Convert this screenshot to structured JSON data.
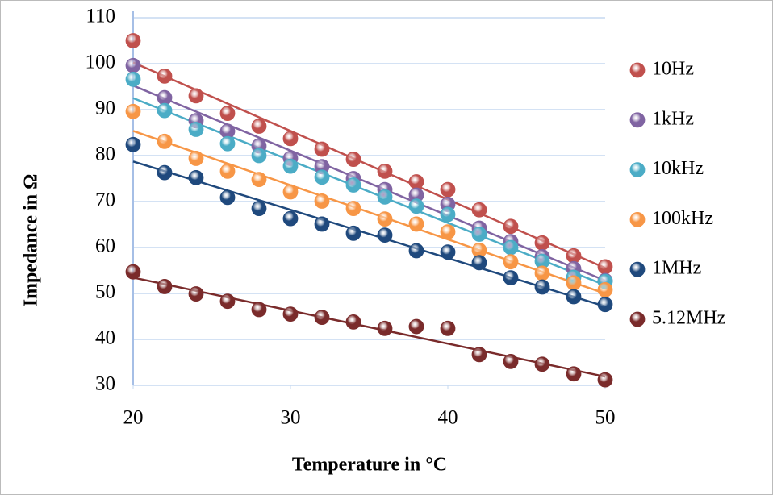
{
  "chart_data": {
    "type": "scatter",
    "x_label": "Temperature in °C",
    "y_label": "Impedance in Ω",
    "x": [
      20,
      22,
      24,
      26,
      28,
      30,
      32,
      34,
      36,
      38,
      40,
      42,
      44,
      46,
      48,
      50
    ],
    "series": [
      {
        "name": "10Hz",
        "color": "#c0504d",
        "values": [
          105,
          97.3,
          93,
          89.2,
          86.4,
          83.7,
          81.4,
          79.2,
          76.6,
          74.3,
          72.6,
          68.2,
          64.6,
          61,
          58.2,
          55.8
        ]
      },
      {
        "name": "1kHz",
        "color": "#8064a2",
        "values": [
          99.6,
          92.6,
          87.6,
          85.3,
          82.1,
          79.4,
          77.6,
          75,
          72.6,
          71.4,
          69.4,
          64.2,
          61.3,
          58,
          55.4,
          52.8
        ]
      },
      {
        "name": "10kHz",
        "color": "#4bacc6",
        "values": [
          96.6,
          89.8,
          85.7,
          82.6,
          80,
          77.7,
          75.3,
          73.6,
          71,
          69,
          67.2,
          62.9,
          60,
          57,
          53.5,
          52.6
        ]
      },
      {
        "name": "100kHz",
        "color": "#f79646",
        "values": [
          89.6,
          83.1,
          79.4,
          76.6,
          74.8,
          72.1,
          70.1,
          68.5,
          66.2,
          65.1,
          63.4,
          59.4,
          56.9,
          54.4,
          52.3,
          50.8
        ]
      },
      {
        "name": "1MHz",
        "color": "#1f497d",
        "values": [
          82.4,
          76.3,
          75.2,
          70.9,
          68.5,
          66.3,
          65.1,
          63.1,
          62.7,
          59.3,
          59,
          56.7,
          53.4,
          51.4,
          49.3,
          47.6
        ]
      },
      {
        "name": "5.12MHz",
        "color": "#7a2b2b",
        "values": [
          54.7,
          51.5,
          49.9,
          48.3,
          46.5,
          45.5,
          44.8,
          43.8,
          42.4,
          42.8,
          42.4,
          36.7,
          35.2,
          34.6,
          32.5,
          31.2
        ]
      }
    ],
    "xlim": [
      20,
      50
    ],
    "xticks": [
      20,
      30,
      40,
      50
    ],
    "ylim": [
      30,
      110
    ],
    "yticks": [
      30,
      40,
      50,
      60,
      70,
      80,
      90,
      100,
      110
    ],
    "grid": true,
    "trendline": true,
    "legend": "right"
  }
}
